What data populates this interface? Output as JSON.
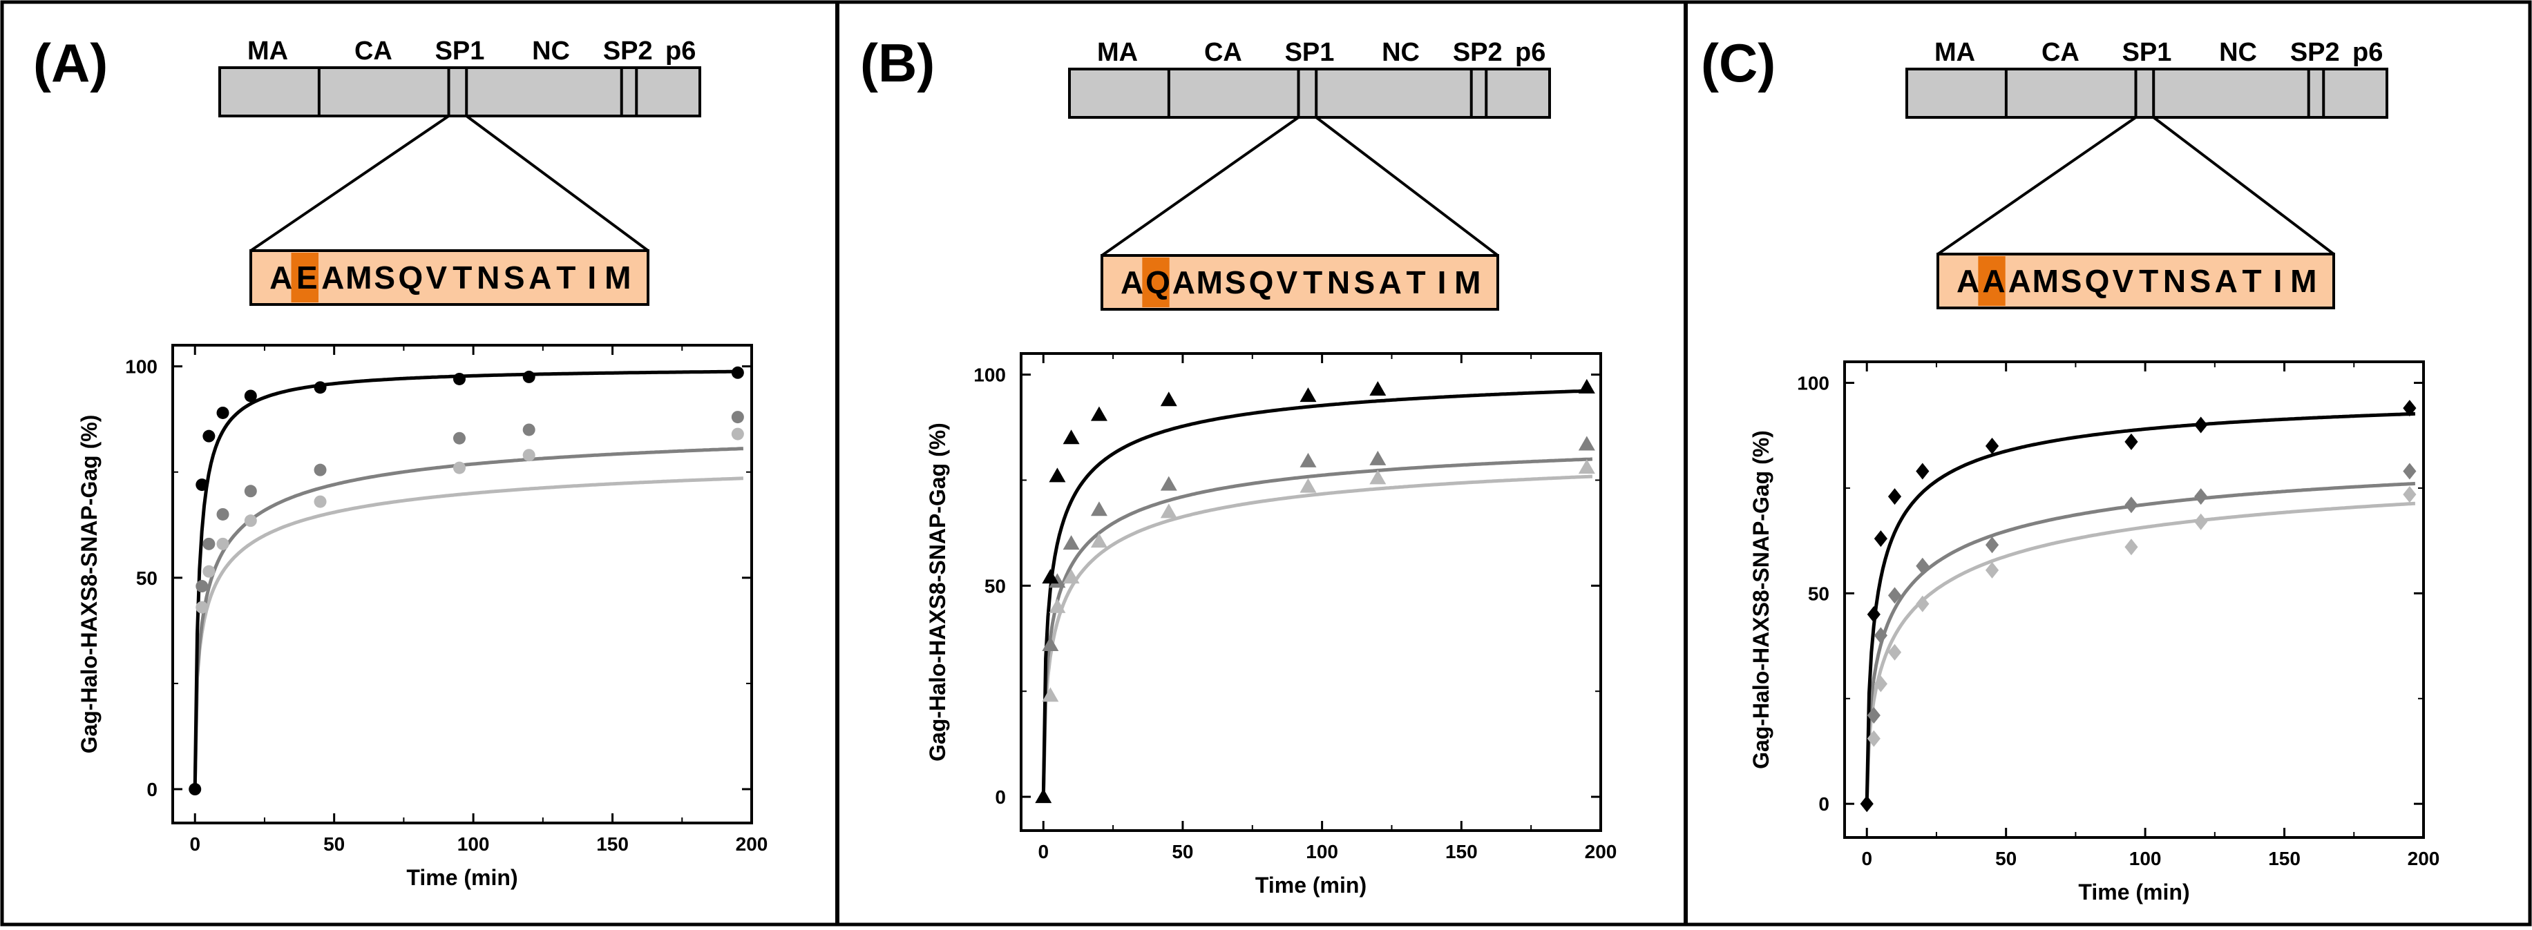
{
  "colors": {
    "background": "#ffffff",
    "gag_bar": "#c8c8c8",
    "seq_box": "#fbc9a0",
    "seq_highlight": "#e8730f",
    "series_dark": "#000000",
    "series_mid": "#808080",
    "series_light": "#b8b8b8"
  },
  "panels": [
    {
      "letter": "(A)",
      "domains": [
        "MA",
        "CA",
        "SP1",
        "NC",
        "SP2",
        "p6"
      ],
      "sequence": [
        "A",
        "E",
        "A",
        "M",
        "S",
        "Q",
        "V",
        "T",
        "N",
        "S",
        "A",
        "T",
        "I",
        "M"
      ],
      "highlight_index": 1
    },
    {
      "letter": "(B)",
      "domains": [
        "MA",
        "CA",
        "SP1",
        "NC",
        "SP2",
        "p6"
      ],
      "sequence": [
        "A",
        "Q",
        "A",
        "M",
        "S",
        "Q",
        "V",
        "T",
        "N",
        "S",
        "A",
        "T",
        "I",
        "M"
      ],
      "highlight_index": 1
    },
    {
      "letter": "(C)",
      "domains": [
        "MA",
        "CA",
        "SP1",
        "NC",
        "SP2",
        "p6"
      ],
      "sequence": [
        "A",
        "A",
        "A",
        "M",
        "S",
        "Q",
        "V",
        "T",
        "N",
        "S",
        "A",
        "T",
        "I",
        "M"
      ],
      "highlight_index": 1
    }
  ],
  "chart_data": [
    {
      "type": "scatter",
      "panel": "(A)",
      "marker": "circle",
      "xlabel": "Time (min)",
      "ylabel": "Gag-Halo-HAXS8-SNAP-Gag (%)",
      "xlim": [
        -8,
        200
      ],
      "ylim": [
        -8,
        105
      ],
      "xticks": [
        0,
        50,
        100,
        150,
        200
      ],
      "yticks": [
        0,
        50,
        100
      ],
      "series": [
        {
          "name": "dark",
          "color": "#000000",
          "x": [
            0,
            2.5,
            5,
            10,
            20,
            45,
            95,
            120,
            195
          ],
          "y": [
            0,
            72,
            83.5,
            89,
            93,
            95,
            97,
            97.5,
            98.5
          ],
          "fit": {
            "A": 100,
            "K": 1.5,
            "n": 0.9
          }
        },
        {
          "name": "mid",
          "color": "#808080",
          "x": [
            2.5,
            5,
            10,
            20,
            45,
            95,
            120,
            195
          ],
          "y": [
            48,
            58,
            65,
            70.5,
            75.5,
            83,
            85,
            88
          ],
          "fit": {
            "A": 90,
            "K": 4,
            "n": 0.55
          }
        },
        {
          "name": "light",
          "color": "#b8b8b8",
          "x": [
            2.5,
            5,
            10,
            20,
            45,
            95,
            120,
            195
          ],
          "y": [
            43,
            51.5,
            58,
            63.5,
            68,
            76,
            79,
            84
          ],
          "fit": {
            "A": 84,
            "K": 4,
            "n": 0.5
          }
        }
      ]
    },
    {
      "type": "scatter",
      "panel": "(B)",
      "marker": "triangle",
      "xlabel": "Time (min)",
      "ylabel": "Gag-Halo-HAXS8-SNAP-Gag (%)",
      "xlim": [
        -8,
        200
      ],
      "ylim": [
        -8,
        105
      ],
      "xticks": [
        0,
        50,
        100,
        150,
        200
      ],
      "yticks": [
        0,
        50,
        100
      ],
      "series": [
        {
          "name": "dark",
          "color": "#000000",
          "x": [
            0,
            2.5,
            5,
            10,
            20,
            45,
            95,
            120,
            195
          ],
          "y": [
            0,
            52,
            76,
            85,
            90.5,
            94,
            95,
            96.5,
            97
          ],
          "fit": {
            "A": 104,
            "K": 3,
            "n": 0.6
          }
        },
        {
          "name": "mid",
          "color": "#808080",
          "x": [
            2.5,
            5,
            10,
            20,
            45,
            95,
            120,
            195
          ],
          "y": [
            36,
            51,
            60,
            68,
            74,
            79.5,
            80,
            83.5
          ],
          "fit": {
            "A": 90,
            "K": 4.5,
            "n": 0.55
          }
        },
        {
          "name": "light",
          "color": "#b8b8b8",
          "x": [
            2.5,
            5,
            10,
            20,
            45,
            95,
            120,
            195
          ],
          "y": [
            24,
            45,
            52,
            60.5,
            67.5,
            73.5,
            75.5,
            78
          ],
          "fit": {
            "A": 87,
            "K": 6,
            "n": 0.55
          }
        }
      ]
    },
    {
      "type": "scatter",
      "panel": "(C)",
      "marker": "diamond",
      "xlabel": "Time (min)",
      "ylabel": "Gag-Halo-HAXS8-SNAP-Gag (%)",
      "xlim": [
        -8,
        200
      ],
      "ylim": [
        -8,
        105
      ],
      "xticks": [
        0,
        50,
        100,
        150,
        200
      ],
      "yticks": [
        0,
        50,
        100
      ],
      "series": [
        {
          "name": "dark",
          "color": "#000000",
          "x": [
            0,
            2.5,
            5,
            10,
            20,
            45,
            95,
            120,
            195
          ],
          "y": [
            0,
            45,
            63,
            73,
            79,
            85,
            86,
            90,
            94
          ],
          "fit": {
            "A": 100,
            "K": 4,
            "n": 0.65
          }
        },
        {
          "name": "mid",
          "color": "#808080",
          "x": [
            2.5,
            5,
            10,
            20,
            45,
            95,
            120,
            195
          ],
          "y": [
            21,
            40,
            49.5,
            56.5,
            61.5,
            71,
            73,
            79
          ],
          "fit": {
            "A": 90,
            "K": 9,
            "n": 0.55
          }
        },
        {
          "name": "light",
          "color": "#b8b8b8",
          "x": [
            2.5,
            5,
            10,
            20,
            45,
            95,
            120,
            195
          ],
          "y": [
            15.5,
            28.5,
            36,
            47.5,
            55.5,
            61,
            67,
            73.5
          ],
          "fit": {
            "A": 88,
            "K": 14,
            "n": 0.55
          }
        }
      ]
    }
  ]
}
